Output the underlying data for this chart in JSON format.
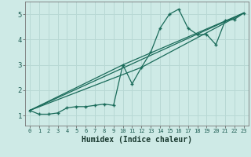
{
  "xlabel": "Humidex (Indice chaleur)",
  "bg_color": "#ceeae6",
  "grid_color": "#b8d8d4",
  "line_color": "#1a6b5a",
  "xlim": [
    -0.5,
    23.5
  ],
  "ylim": [
    0.6,
    5.5
  ],
  "xticks": [
    0,
    1,
    2,
    3,
    4,
    5,
    6,
    7,
    8,
    9,
    10,
    11,
    12,
    13,
    14,
    15,
    16,
    17,
    18,
    19,
    20,
    21,
    22,
    23
  ],
  "yticks": [
    1,
    2,
    3,
    4,
    5
  ],
  "series1_x": [
    0,
    1,
    2,
    3,
    4,
    5,
    6,
    7,
    8,
    9,
    10,
    11,
    12,
    13,
    14,
    15,
    16,
    17,
    18,
    19,
    20,
    21,
    22,
    23
  ],
  "series1_y": [
    1.2,
    1.05,
    1.05,
    1.1,
    1.3,
    1.35,
    1.35,
    1.4,
    1.45,
    1.4,
    3.0,
    2.25,
    2.9,
    3.5,
    4.45,
    5.0,
    5.2,
    4.45,
    4.2,
    4.2,
    3.8,
    4.75,
    4.8,
    5.05
  ],
  "series2_x": [
    0,
    23
  ],
  "series2_y": [
    1.2,
    5.05
  ],
  "series3_x": [
    0,
    10,
    23
  ],
  "series3_y": [
    1.2,
    3.0,
    5.05
  ],
  "series4_x": [
    0,
    12,
    23
  ],
  "series4_y": [
    1.2,
    2.9,
    5.05
  ]
}
